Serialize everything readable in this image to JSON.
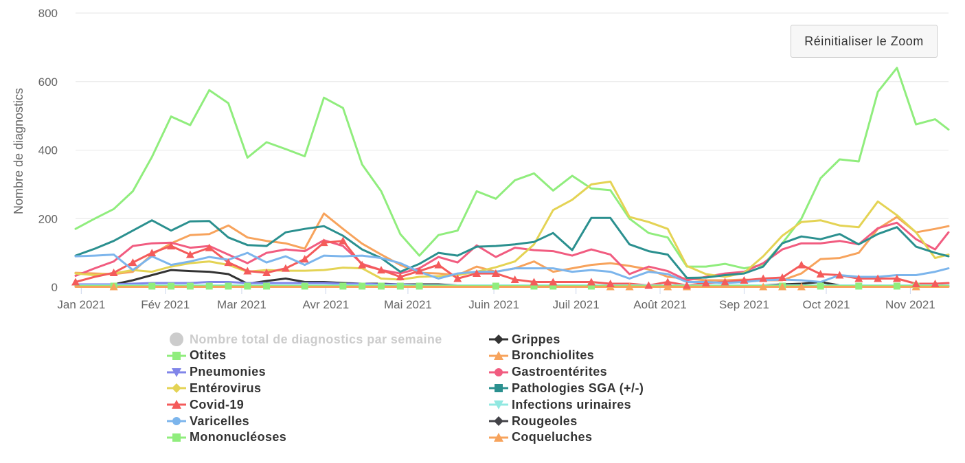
{
  "reset_button": {
    "label": "Réinitialiser le Zoom"
  },
  "chart_data": {
    "type": "line",
    "title": "",
    "ylabel": "Nombre de diagnostics",
    "xlabel": "",
    "ylim": [
      0,
      800
    ],
    "yticks": [
      0,
      200,
      400,
      600,
      800
    ],
    "x_domain": [
      0,
      45.7
    ],
    "x_ticks": [
      {
        "label": "Jan 2021",
        "week": 0.3
      },
      {
        "label": "Fév 2021",
        "week": 4.7
      },
      {
        "label": "Mar 2021",
        "week": 8.7
      },
      {
        "label": "Avr 2021",
        "week": 13.1
      },
      {
        "label": "Mai 2021",
        "week": 17.4
      },
      {
        "label": "Juin 2021",
        "week": 21.9
      },
      {
        "label": "Juil 2021",
        "week": 26.2
      },
      {
        "label": "Août 2021",
        "week": 30.6
      },
      {
        "label": "Sep 2021",
        "week": 35.0
      },
      {
        "label": "Oct 2021",
        "week": 39.3
      },
      {
        "label": "Nov 2021",
        "week": 43.7
      }
    ],
    "weeks": [
      0,
      1,
      2,
      3,
      4,
      5,
      6,
      7,
      8,
      9,
      10,
      11,
      12,
      13,
      14,
      15,
      16,
      17,
      18,
      19,
      20,
      21,
      22,
      23,
      24,
      25,
      26,
      27,
      28,
      29,
      30,
      31,
      32,
      33,
      34,
      35,
      36,
      37,
      38,
      39,
      40,
      41,
      42,
      43,
      44,
      45,
      45.7
    ],
    "series": [
      {
        "name": "Nombre total de diagnostics par semaine",
        "color": "#cccccc",
        "symbol": "circle",
        "visible": false,
        "values": []
      },
      {
        "name": "Otites",
        "color": "#90ed7d",
        "symbol": "square",
        "values": [
          170,
          200,
          228,
          280,
          380,
          498,
          473,
          575,
          537,
          378,
          423,
          403,
          382,
          553,
          523,
          358,
          280,
          155,
          92,
          152,
          165,
          280,
          258,
          312,
          332,
          282,
          325,
          288,
          283,
          200,
          158,
          145,
          60,
          60,
          68,
          55,
          65,
          128,
          200,
          318,
          373,
          367,
          570,
          640,
          475,
          490,
          460
        ]
      },
      {
        "name": "Grippes",
        "color": "#333333",
        "symbol": "diamond",
        "values": [
          5,
          5,
          8,
          20,
          35,
          50,
          47,
          45,
          38,
          10,
          18,
          25,
          15,
          15,
          12,
          10,
          10,
          8,
          8,
          8,
          5,
          5,
          5,
          5,
          5,
          5,
          5,
          5,
          5,
          5,
          5,
          5,
          5,
          5,
          5,
          5,
          5,
          8,
          10,
          15,
          5,
          5,
          5,
          5,
          5,
          5,
          5
        ]
      },
      {
        "name": "Bronchiolites",
        "color": "#f7a35c",
        "symbol": "triangle",
        "values": [
          42,
          40,
          38,
          45,
          95,
          128,
          152,
          155,
          180,
          145,
          135,
          128,
          112,
          215,
          170,
          127,
          95,
          65,
          42,
          40,
          35,
          60,
          45,
          55,
          75,
          45,
          55,
          65,
          70,
          62,
          52,
          30,
          25,
          20,
          20,
          22,
          20,
          20,
          40,
          82,
          85,
          100,
          170,
          205,
          160,
          170,
          178
        ]
      },
      {
        "name": "Pneumonies",
        "color": "#8085e9",
        "symbol": "triangle-down",
        "values": [
          8,
          8,
          8,
          10,
          12,
          12,
          12,
          15,
          15,
          12,
          12,
          12,
          12,
          12,
          10,
          10,
          8,
          8,
          5,
          5,
          5,
          5,
          5,
          5,
          5,
          5,
          5,
          5,
          5,
          5,
          5,
          5,
          5,
          5,
          5,
          5,
          5,
          5,
          5,
          5,
          5,
          5,
          5,
          5,
          5,
          5,
          5
        ]
      },
      {
        "name": "Gastroentérites",
        "color": "#f15c80",
        "symbol": "circle",
        "values": [
          33,
          55,
          75,
          120,
          128,
          130,
          115,
          120,
          95,
          70,
          100,
          110,
          105,
          137,
          120,
          68,
          50,
          40,
          55,
          88,
          72,
          122,
          88,
          115,
          108,
          105,
          92,
          110,
          95,
          38,
          60,
          47,
          20,
          30,
          40,
          45,
          70,
          110,
          128,
          128,
          135,
          125,
          172,
          188,
          140,
          110,
          160
        ]
      },
      {
        "name": "Entérovirus",
        "color": "#e4d354",
        "symbol": "diamond",
        "values": [
          40,
          35,
          40,
          50,
          45,
          60,
          70,
          75,
          65,
          45,
          50,
          48,
          48,
          50,
          57,
          55,
          25,
          22,
          30,
          32,
          35,
          45,
          58,
          75,
          125,
          225,
          255,
          300,
          308,
          205,
          190,
          170,
          62,
          38,
          30,
          42,
          90,
          150,
          190,
          195,
          180,
          175,
          250,
          210,
          160,
          85,
          95
        ]
      },
      {
        "name": "Pathologies SGA (+/-)",
        "color": "#2b908f",
        "symbol": "square",
        "values": [
          92,
          112,
          135,
          165,
          195,
          165,
          192,
          193,
          145,
          123,
          120,
          160,
          170,
          178,
          150,
          110,
          85,
          45,
          68,
          100,
          92,
          118,
          120,
          125,
          132,
          158,
          108,
          202,
          202,
          125,
          105,
          95,
          27,
          28,
          35,
          40,
          60,
          128,
          148,
          140,
          155,
          125,
          155,
          175,
          118,
          100,
          90
        ]
      },
      {
        "name": "Covid-19",
        "color": "#f45b5b",
        "symbol": "triangle",
        "values": [
          15,
          30,
          42,
          72,
          100,
          120,
          95,
          115,
          72,
          47,
          42,
          55,
          82,
          130,
          135,
          65,
          50,
          30,
          47,
          65,
          25,
          40,
          40,
          22,
          15,
          15,
          15,
          15,
          10,
          10,
          5,
          15,
          5,
          12,
          15,
          20,
          25,
          28,
          65,
          38,
          35,
          25,
          25,
          25,
          10,
          10,
          12
        ]
      },
      {
        "name": "Infections urinaires",
        "color": "#91e8e1",
        "symbol": "triangle-down",
        "values": [
          5,
          5,
          5,
          5,
          5,
          5,
          5,
          5,
          5,
          5,
          5,
          5,
          5,
          5,
          5,
          5,
          5,
          5,
          5,
          5,
          5,
          5,
          5,
          5,
          5,
          5,
          5,
          5,
          5,
          5,
          5,
          5,
          5,
          5,
          5,
          5,
          5,
          5,
          5,
          5,
          5,
          5,
          5,
          5,
          5,
          5,
          5
        ]
      },
      {
        "name": "Varicelles",
        "color": "#7cb5ec",
        "symbol": "circle",
        "values": [
          90,
          92,
          95,
          50,
          90,
          65,
          75,
          88,
          80,
          100,
          72,
          90,
          65,
          92,
          90,
          92,
          85,
          70,
          45,
          25,
          40,
          45,
          45,
          55,
          55,
          55,
          45,
          50,
          45,
          25,
          45,
          38,
          15,
          15,
          12,
          15,
          20,
          22,
          20,
          15,
          35,
          30,
          30,
          35,
          35,
          45,
          55
        ]
      },
      {
        "name": "Rougeoles",
        "color": "#434348",
        "symbol": "diamond",
        "values": [
          2,
          2,
          2,
          2,
          2,
          2,
          2,
          2,
          2,
          2,
          2,
          2,
          2,
          2,
          2,
          2,
          2,
          2,
          2,
          2,
          2,
          2,
          2,
          2,
          2,
          2,
          2,
          2,
          2,
          2,
          2,
          2,
          2,
          2,
          2,
          2,
          2,
          2,
          2,
          2,
          2,
          2,
          2,
          2,
          2,
          2,
          2
        ]
      },
      {
        "name": "Mononucléoses",
        "color": "#90ed7d",
        "symbol": "square",
        "values": [
          3,
          3,
          3,
          3,
          3,
          3,
          3,
          3,
          3,
          3,
          3,
          3,
          3,
          3,
          3,
          3,
          3,
          3,
          3,
          3,
          3,
          3,
          3,
          3,
          3,
          3,
          3,
          3,
          3,
          3,
          3,
          3,
          3,
          3,
          3,
          3,
          3,
          3,
          3,
          3,
          3,
          3,
          3,
          3,
          3,
          3,
          3
        ]
      },
      {
        "name": "Coqueluches",
        "color": "#f7a35c",
        "symbol": "triangle",
        "values": [
          1,
          1,
          1,
          1,
          1,
          1,
          1,
          1,
          1,
          1,
          1,
          1,
          1,
          1,
          1,
          1,
          1,
          1,
          1,
          1,
          1,
          1,
          1,
          1,
          1,
          1,
          1,
          1,
          1,
          1,
          1,
          1,
          1,
          1,
          1,
          1,
          1,
          1,
          1,
          1,
          1,
          1,
          1,
          1,
          1,
          1,
          1
        ]
      }
    ],
    "legend": {
      "left": [
        "Nombre total de diagnostics par semaine",
        "Otites",
        "Pneumonies",
        "Entérovirus",
        "Covid-19",
        "Varicelles",
        "Mononucléoses"
      ],
      "right": [
        "Grippes",
        "Bronchiolites",
        "Gastroentérites",
        "Pathologies SGA (+/-)",
        "Infections urinaires",
        "Rougeoles",
        "Coqueluches"
      ]
    },
    "markers": [
      {
        "series": "Mononucléoses",
        "weeks": [
          2,
          4,
          5,
          6,
          7,
          8,
          9,
          10,
          12,
          14,
          15,
          16,
          17,
          18,
          22,
          24,
          25,
          27,
          37,
          39,
          41,
          43,
          44
        ]
      },
      {
        "series": "Coqueluches",
        "weeks": [
          2,
          28,
          29,
          31,
          32,
          36,
          37,
          38,
          44
        ]
      },
      {
        "series": "Covid-19",
        "weeks": [
          0,
          2,
          3,
          4,
          5,
          6,
          7,
          8,
          9,
          10,
          11,
          12,
          13,
          14,
          15,
          16,
          17,
          18,
          19,
          20,
          21,
          22,
          23,
          24,
          25,
          27,
          28,
          30,
          31,
          32,
          33,
          34,
          35,
          36,
          37,
          38,
          39,
          40,
          41,
          42,
          43,
          44,
          45
        ]
      }
    ]
  }
}
